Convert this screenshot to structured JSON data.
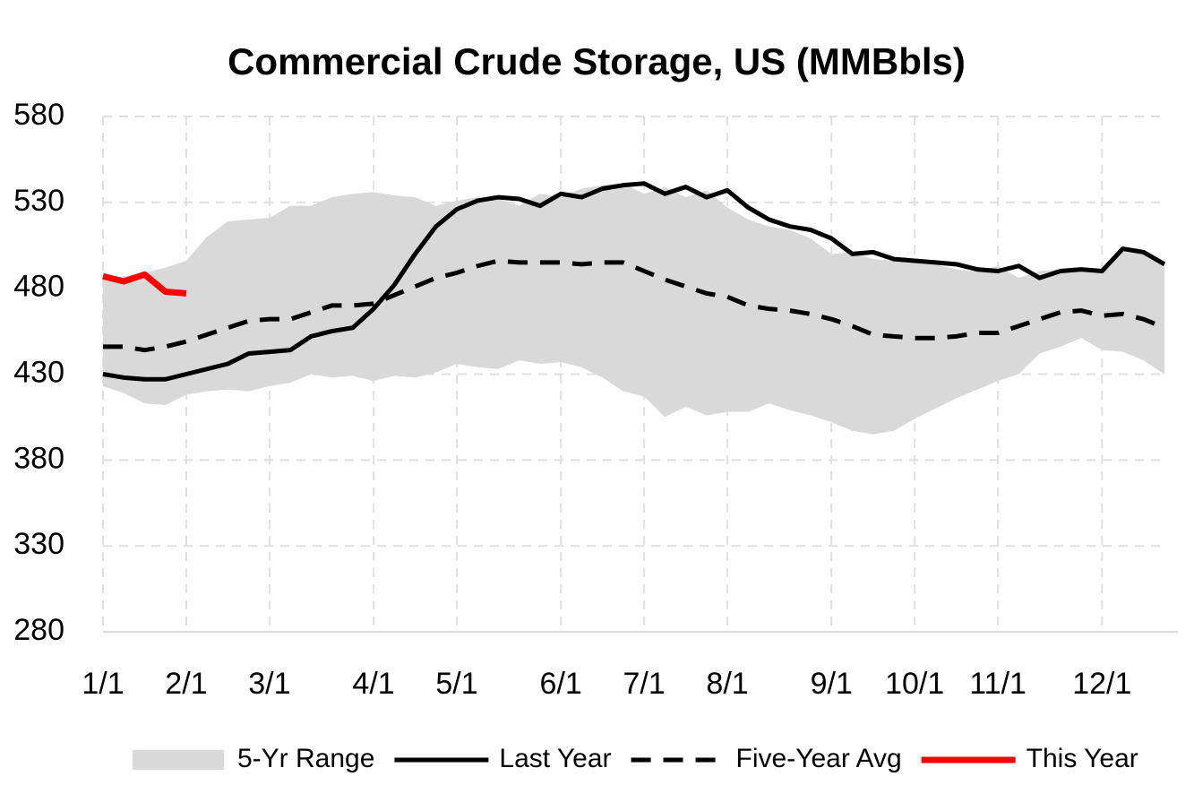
{
  "chart_data": {
    "type": "line",
    "title": "Commercial Crude Storage, US (MMBbls)",
    "categories": [
      "1/1",
      null,
      null,
      null,
      "2/1",
      null,
      null,
      null,
      "3/1",
      null,
      null,
      null,
      null,
      "4/1",
      null,
      null,
      null,
      "5/1",
      null,
      null,
      null,
      null,
      "6/1",
      null,
      null,
      null,
      "7/1",
      null,
      null,
      null,
      "8/1",
      null,
      null,
      null,
      null,
      "9/1",
      null,
      null,
      null,
      "10/1",
      null,
      null,
      null,
      "11/1",
      null,
      null,
      null,
      null,
      "12/1",
      null,
      null,
      null
    ],
    "ylim": [
      280,
      580
    ],
    "yticks": [
      280,
      330,
      380,
      430,
      480,
      530,
      580
    ],
    "grid": true,
    "legend": "bottom",
    "series": [
      {
        "name": "5-Yr Range",
        "kind": "band",
        "color": "#d9d9d9",
        "values": [
          485,
          487,
          489,
          492,
          496,
          510,
          519,
          520,
          521,
          528,
          528,
          533,
          535,
          536,
          534,
          533,
          528,
          531,
          533,
          532,
          528,
          535,
          533,
          538,
          540,
          541,
          535,
          539,
          533,
          537,
          527,
          520,
          516,
          514,
          509,
          500,
          501,
          497,
          496,
          495,
          494,
          491,
          490,
          493,
          486,
          490,
          491,
          490,
          489,
          503,
          501,
          494
        ],
        "low": [
          423,
          419,
          413,
          412,
          418,
          420,
          421,
          420,
          423,
          425,
          430,
          428,
          429,
          426,
          429,
          428,
          431,
          436,
          434,
          433,
          438,
          436,
          437,
          434,
          428,
          420,
          417,
          405,
          411,
          406,
          408,
          408,
          413,
          409,
          406,
          402,
          397,
          395,
          397,
          404,
          410,
          416,
          421,
          426,
          430,
          442,
          446,
          451,
          444,
          443,
          438,
          430
        ]
      },
      {
        "name": "Last Year",
        "color": "#000000",
        "dash": false,
        "values": [
          430,
          428,
          427,
          427,
          430,
          433,
          436,
          442,
          443,
          444,
          452,
          455,
          457,
          468,
          482,
          500,
          516,
          526,
          531,
          533,
          532,
          528,
          535,
          533,
          538,
          540,
          541,
          535,
          539,
          533,
          537,
          527,
          520,
          516,
          514,
          509,
          500,
          501,
          497,
          496,
          495,
          494,
          491,
          490,
          493,
          486,
          490,
          491,
          490,
          503,
          501,
          494
        ]
      },
      {
        "name": "Five-Year Avg",
        "color": "#000000",
        "dash": true,
        "values": [
          446,
          446,
          444,
          446,
          449,
          453,
          457,
          461,
          462,
          462,
          466,
          470,
          470,
          471,
          476,
          481,
          486,
          489,
          493,
          496,
          495,
          495,
          495,
          494,
          495,
          495,
          490,
          485,
          481,
          477,
          475,
          470,
          468,
          467,
          465,
          462,
          458,
          453,
          452,
          451,
          451,
          452,
          454,
          454,
          458,
          462,
          466,
          467,
          464,
          465,
          462,
          457
        ]
      },
      {
        "name": "This Year",
        "color": "#ff0000",
        "dash": false,
        "values": [
          487,
          484,
          488,
          478,
          477,
          null,
          null,
          null,
          null,
          null,
          null,
          null,
          null,
          null,
          null,
          null,
          null,
          null,
          null,
          null,
          null,
          null,
          null,
          null,
          null,
          null,
          null,
          null,
          null,
          null,
          null,
          null,
          null,
          null,
          null,
          null,
          null,
          null,
          null,
          null,
          null,
          null,
          null,
          null,
          null,
          null,
          null,
          null,
          null,
          null,
          null,
          null
        ]
      }
    ]
  }
}
